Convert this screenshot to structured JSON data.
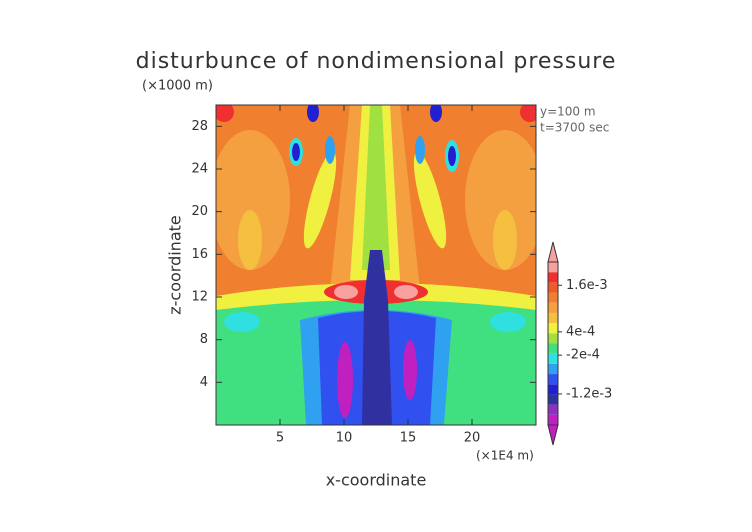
{
  "chart_data": {
    "type": "contour",
    "title": "disturbunce of nondimensional pressure",
    "y_unit": "(×1000 m)",
    "x_unit": "(×1E4 m)",
    "annotations": [
      "y=100 m",
      "t=3700 sec"
    ],
    "xlabel": "x-coordinate",
    "ylabel": "z-coordinate",
    "xlim": [
      0,
      25
    ],
    "xticks": [
      5,
      10,
      15,
      20
    ],
    "ylim": [
      0,
      30
    ],
    "yticks": [
      4,
      8,
      12,
      16,
      20,
      24,
      28
    ],
    "colorbar": {
      "clim": [
        -0.002,
        0.0022
      ],
      "colors": [
        "#c020c0",
        "#9030c0",
        "#3030a0",
        "#2020d0",
        "#3050f0",
        "#30a0f0",
        "#30e0e0",
        "#40e080",
        "#a0e040",
        "#f0f040",
        "#f5c040",
        "#f5a040",
        "#f08030",
        "#f05a28",
        "#f03030",
        "#f8a0a0"
      ],
      "ticks": [
        {
          "value": 0.0016,
          "label": "1.6e-3"
        },
        {
          "value": 0.0004,
          "label": "4e-4"
        },
        {
          "value": -0.0002,
          "label": "-2e-4"
        },
        {
          "value": -0.0012,
          "label": "-1.2e-3"
        }
      ]
    }
  }
}
